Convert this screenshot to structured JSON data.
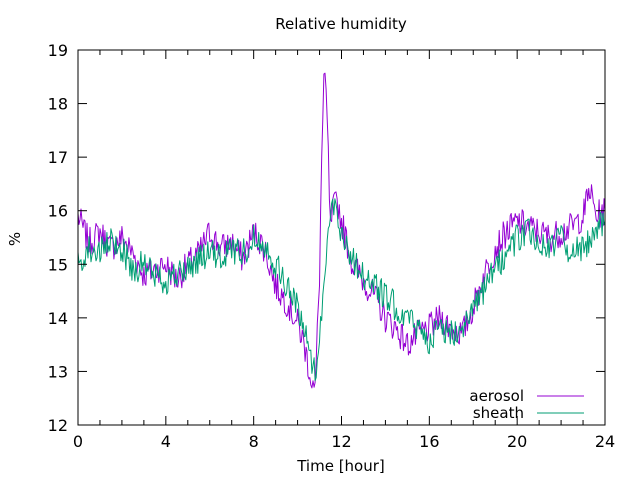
{
  "chart_data": {
    "type": "line",
    "title": "Relative humidity",
    "xlabel": "Time [hour]",
    "ylabel": "%",
    "xlim": [
      0,
      24
    ],
    "ylim": [
      12,
      19
    ],
    "xticks": [
      "0",
      "4",
      "8",
      "12",
      "16",
      "20",
      "24"
    ],
    "yticks": [
      "12",
      "13",
      "14",
      "15",
      "16",
      "17",
      "18",
      "19"
    ],
    "grid": false,
    "legend_position": "bottom-right",
    "series": [
      {
        "name": "aerosol",
        "color": "#9400d3",
        "x": [
          0,
          0.5,
          1,
          1.5,
          2,
          2.5,
          3,
          3.5,
          4,
          4.5,
          5,
          5.5,
          6,
          6.5,
          7,
          7.5,
          8,
          8.5,
          9,
          9.5,
          10,
          10.3,
          10.6,
          10.8,
          11,
          11.1,
          11.2,
          11.3,
          11.4,
          11.5,
          11.6,
          11.8,
          12,
          12.5,
          13,
          13.5,
          14,
          14.5,
          15,
          15.5,
          16,
          16.5,
          17,
          17.5,
          18,
          18.5,
          19,
          19.5,
          20,
          20.5,
          21,
          21.5,
          22,
          22.5,
          23,
          23.3,
          23.6,
          24
        ],
        "y": [
          15.9,
          15.4,
          15.6,
          15.3,
          15.5,
          15.2,
          14.8,
          14.9,
          15.0,
          14.7,
          15.0,
          15.2,
          15.6,
          15.3,
          15.4,
          15.1,
          15.6,
          15.3,
          14.6,
          14.3,
          13.9,
          13.5,
          12.9,
          12.6,
          14.8,
          17.0,
          18.4,
          18.2,
          17.0,
          15.6,
          16.0,
          16.2,
          15.8,
          15.0,
          14.7,
          14.4,
          14.0,
          13.8,
          13.5,
          13.7,
          13.8,
          14.0,
          13.8,
          13.7,
          14.2,
          14.8,
          15.3,
          15.6,
          15.8,
          15.7,
          15.6,
          15.5,
          15.6,
          15.7,
          15.9,
          16.4,
          15.9,
          16.0
        ]
      },
      {
        "name": "sheath",
        "color": "#009e73",
        "x": [
          0,
          0.5,
          1,
          1.5,
          2,
          2.5,
          3,
          3.5,
          4,
          4.5,
          5,
          5.5,
          6,
          6.5,
          7,
          7.5,
          8,
          8.5,
          9,
          9.5,
          10,
          10.3,
          10.6,
          10.8,
          11,
          11.2,
          11.4,
          11.6,
          11.8,
          12,
          12.5,
          13,
          13.5,
          14,
          14.5,
          15,
          15.5,
          16,
          16.5,
          17,
          17.5,
          18,
          18.5,
          19,
          19.5,
          20,
          20.5,
          21,
          21.5,
          22,
          22.5,
          23,
          23.3,
          23.6,
          24
        ],
        "y": [
          15.0,
          15.3,
          15.2,
          15.4,
          15.3,
          14.9,
          15.0,
          14.8,
          14.7,
          14.8,
          14.9,
          15.1,
          15.2,
          15.1,
          15.3,
          15.2,
          15.5,
          15.4,
          15.0,
          14.6,
          14.2,
          13.8,
          13.3,
          13.0,
          13.5,
          14.8,
          15.6,
          16.1,
          16.0,
          15.6,
          15.1,
          14.8,
          14.6,
          14.4,
          14.2,
          14.0,
          13.8,
          13.6,
          13.8,
          13.7,
          13.9,
          14.1,
          14.5,
          14.9,
          15.2,
          15.5,
          15.6,
          15.4,
          15.3,
          15.5,
          15.2,
          15.3,
          15.5,
          15.7,
          15.8
        ]
      }
    ]
  }
}
